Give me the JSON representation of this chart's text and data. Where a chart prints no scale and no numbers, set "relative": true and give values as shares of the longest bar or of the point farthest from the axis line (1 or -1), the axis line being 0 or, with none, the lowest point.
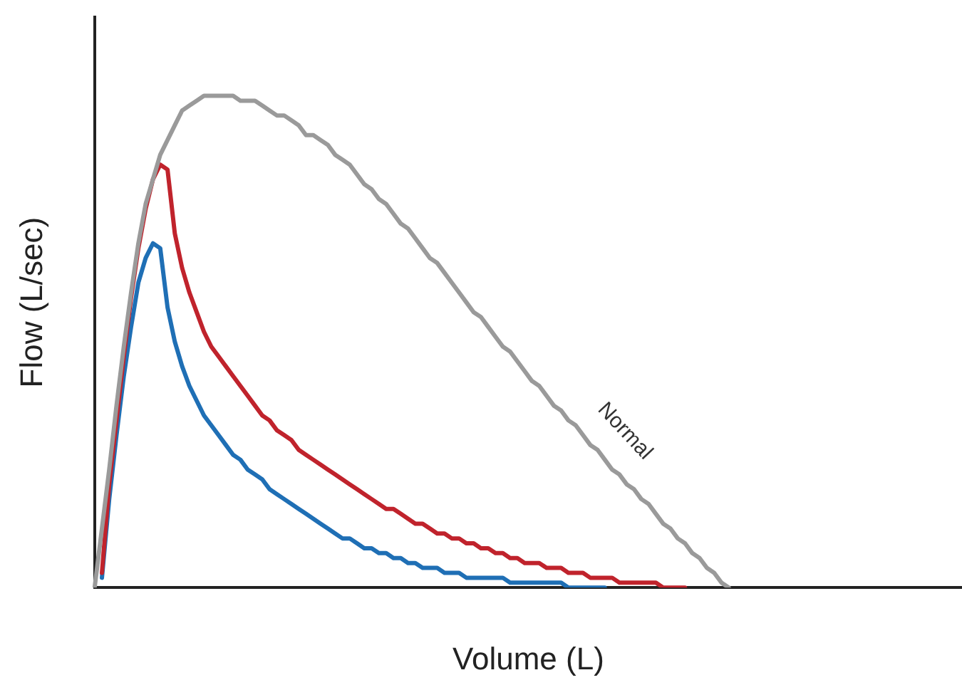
{
  "chart_data": {
    "type": "line",
    "xlabel": "Volume (L)",
    "ylabel": "Flow (L/sec)",
    "relative": true,
    "grid": false,
    "legend": false,
    "marker": "none",
    "line_style": "solid",
    "tick_labels": false,
    "categories": [
      null,
      null,
      null,
      null,
      null,
      null,
      null,
      null,
      null,
      null,
      null,
      null,
      null,
      null,
      null,
      null,
      null,
      null,
      null,
      null,
      null,
      null,
      null,
      null,
      null,
      null,
      null,
      null,
      null,
      null,
      null,
      null,
      null,
      null,
      null,
      null,
      null,
      null,
      null,
      null,
      null,
      null,
      null,
      null,
      null,
      null,
      null,
      null,
      null,
      null,
      null,
      null,
      null,
      null,
      null,
      null,
      null,
      null,
      null,
      null,
      null,
      null,
      null,
      null,
      null,
      null,
      null,
      null,
      null,
      null,
      null,
      null,
      null,
      null,
      null,
      null,
      null,
      null,
      null,
      null,
      null,
      null,
      null,
      null,
      null,
      null,
      null,
      null,
      null,
      null,
      null,
      null,
      null,
      null,
      null,
      null,
      null,
      null,
      null,
      null,
      null,
      null,
      null,
      null,
      null,
      null,
      null,
      null,
      null,
      null,
      null,
      null,
      null,
      null,
      null,
      null,
      null,
      null,
      null,
      null
    ],
    "series": [
      {
        "name": "Normal",
        "color": "#9a9a9a",
        "values": [
          0,
          0.12,
          0.24,
          0.37,
          0.49,
          0.6,
          0.7,
          0.78,
          0.83,
          0.88,
          0.91,
          0.94,
          0.97,
          0.98,
          0.99,
          1,
          1,
          1,
          1,
          1,
          0.99,
          0.99,
          0.99,
          0.98,
          0.97,
          0.96,
          0.96,
          0.95,
          0.94,
          0.92,
          0.92,
          0.91,
          0.9,
          0.88,
          0.87,
          0.86,
          0.84,
          0.82,
          0.81,
          0.79,
          0.78,
          0.76,
          0.74,
          0.73,
          0.71,
          0.69,
          0.67,
          0.66,
          0.64,
          0.62,
          0.6,
          0.58,
          0.56,
          0.55,
          0.53,
          0.51,
          0.49,
          0.48,
          0.46,
          0.44,
          0.42,
          0.41,
          0.39,
          0.37,
          0.36,
          0.34,
          0.33,
          0.31,
          0.29,
          0.28,
          0.26,
          0.24,
          0.23,
          0.21,
          0.2,
          0.18,
          0.17,
          0.15,
          0.13,
          0.12,
          0.1,
          0.09,
          0.07,
          0.06,
          0.04,
          0.03,
          0.01,
          0,
          null,
          null,
          null,
          null,
          null,
          null,
          null,
          null,
          null,
          null,
          null,
          null,
          null,
          null,
          null,
          null,
          null,
          null,
          null,
          null,
          null,
          null,
          null,
          null,
          null,
          null,
          null,
          null,
          null,
          null,
          null,
          null
        ]
      },
      {
        "color": "#c0232c",
        "values": [
          null,
          0.03,
          0.21,
          0.34,
          0.47,
          0.59,
          0.69,
          0.77,
          0.83,
          0.86,
          0.85,
          0.72,
          0.65,
          0.6,
          0.56,
          0.52,
          0.49,
          0.47,
          0.45,
          0.43,
          0.41,
          0.39,
          0.37,
          0.35,
          0.34,
          0.32,
          0.31,
          0.3,
          0.28,
          0.27,
          0.26,
          0.25,
          0.24,
          0.23,
          0.22,
          0.21,
          0.2,
          0.19,
          0.18,
          0.17,
          0.16,
          0.16,
          0.15,
          0.14,
          0.13,
          0.13,
          0.12,
          0.11,
          0.11,
          0.1,
          0.1,
          0.09,
          0.09,
          0.08,
          0.08,
          0.07,
          0.07,
          0.06,
          0.06,
          0.05,
          0.05,
          0.05,
          0.04,
          0.04,
          0.04,
          0.03,
          0.03,
          0.03,
          0.02,
          0.02,
          0.02,
          0.02,
          0.01,
          0.01,
          0.01,
          0.01,
          0.01,
          0.01,
          0,
          0,
          0,
          0,
          null,
          null,
          null,
          null,
          null,
          null,
          null,
          null,
          null,
          null,
          null,
          null,
          null,
          null,
          null,
          null,
          null,
          null,
          null,
          null,
          null,
          null,
          null,
          null,
          null,
          null,
          null,
          null,
          null,
          null,
          null,
          null,
          null,
          null,
          null,
          null,
          null,
          null
        ]
      },
      {
        "color": "#1f6fb5",
        "values": [
          null,
          0.02,
          0.18,
          0.31,
          0.43,
          0.53,
          0.62,
          0.67,
          0.7,
          0.69,
          0.57,
          0.5,
          0.45,
          0.41,
          0.38,
          0.35,
          0.33,
          0.31,
          0.29,
          0.27,
          0.26,
          0.24,
          0.23,
          0.22,
          0.2,
          0.19,
          0.18,
          0.17,
          0.16,
          0.15,
          0.14,
          0.13,
          0.12,
          0.11,
          0.1,
          0.1,
          0.09,
          0.08,
          0.08,
          0.07,
          0.07,
          0.06,
          0.06,
          0.05,
          0.05,
          0.04,
          0.04,
          0.04,
          0.03,
          0.03,
          0.03,
          0.02,
          0.02,
          0.02,
          0.02,
          0.02,
          0.02,
          0.01,
          0.01,
          0.01,
          0.01,
          0.01,
          0.01,
          0.01,
          0.01,
          0,
          0,
          0,
          0,
          0,
          0,
          null,
          null,
          null,
          null,
          null,
          null,
          null,
          null,
          null,
          null,
          null,
          null,
          null,
          null,
          null,
          null,
          null,
          null,
          null,
          null,
          null,
          null,
          null,
          null,
          null,
          null,
          null,
          null,
          null,
          null,
          null,
          null,
          null,
          null,
          null,
          null,
          null,
          null,
          null,
          null,
          null,
          null,
          null,
          null,
          null,
          null,
          null,
          null,
          null
        ]
      }
    ]
  }
}
